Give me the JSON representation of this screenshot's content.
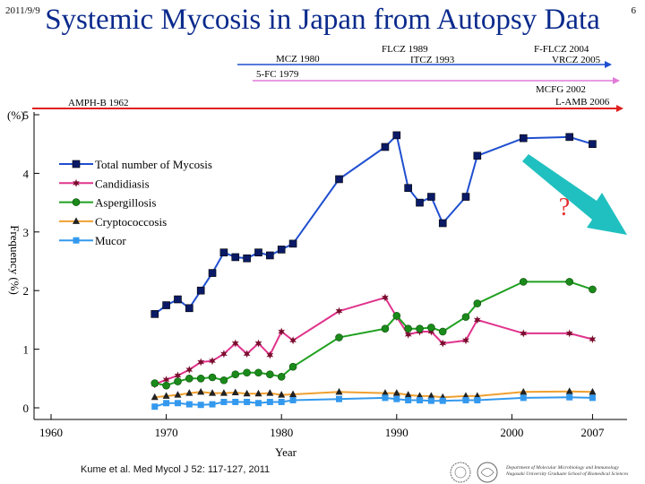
{
  "header": {
    "date": "2011/9/9",
    "title": "Systemic Mycosis in Japan from Autopsy Data",
    "page_number": "6"
  },
  "drug_timeline": {
    "mcz": "MCZ 1980",
    "flcz": "FLCZ 1989",
    "itcz": "ITCZ 1993",
    "fflcz": "F-FLCZ 2004",
    "vrcz": "VRCZ 2005",
    "fc": "5-FC 1979",
    "mcfg": "MCFG 2002",
    "amphb": "AMPH-B 1962",
    "lamb": "L-AMB 2006"
  },
  "annotation": {
    "question_mark": "?"
  },
  "footer": {
    "citation": "Kume et al. Med Mycol J 52: 117-127, 2011",
    "department_line1": "Department of Molecular Microbiology and Immunology",
    "department_line2": "Nagasaki University Graduate School of Biomedical Sciences"
  },
  "colors": {
    "title": "#0a2a8c",
    "total": "#1f4fd0",
    "candidiasis": "#e0338c",
    "aspergillosis": "#20a020",
    "cryptococcosis": "#f0a030",
    "mucor": "#3399ee",
    "arrow": "#20c0c0",
    "question": "#e53030"
  },
  "chart_data": {
    "type": "line",
    "title": "Systemic Mycosis in Japan from Autopsy Data",
    "xlabel": "Year",
    "ylabel": "Frequency (%)",
    "y_unit_label": "(%)",
    "xlim": [
      1960,
      2010
    ],
    "ylim": [
      0,
      5
    ],
    "x_ticks": [
      "1960",
      "1970",
      "1980",
      "1990",
      "2000",
      "2007"
    ],
    "y_ticks": [
      "0",
      "1",
      "2",
      "3",
      "4",
      "5"
    ],
    "grid": false,
    "legend_position": "upper-left",
    "series": [
      {
        "name": "Total number of Mycosis",
        "marker": "square",
        "color": "#1f4fd0",
        "x": [
          1969,
          1970,
          1971,
          1972,
          1973,
          1974,
          1975,
          1976,
          1977,
          1978,
          1979,
          1980,
          1981,
          1985,
          1989,
          1990,
          1991,
          1992,
          1993,
          1994,
          1996,
          1997,
          2001,
          2005,
          2007
        ],
        "y": [
          1.6,
          1.75,
          1.85,
          1.7,
          2.0,
          2.3,
          2.65,
          2.57,
          2.55,
          2.65,
          2.6,
          2.7,
          2.8,
          3.9,
          4.45,
          4.65,
          3.75,
          3.5,
          3.6,
          3.15,
          3.6,
          4.3,
          4.6,
          4.62,
          4.5
        ]
      },
      {
        "name": "Candidiasis",
        "marker": "star",
        "color": "#e0338c",
        "x": [
          1969,
          1970,
          1971,
          1972,
          1973,
          1974,
          1975,
          1976,
          1977,
          1978,
          1979,
          1980,
          1981,
          1985,
          1989,
          1990,
          1991,
          1992,
          1993,
          1994,
          1996,
          1997,
          2001,
          2005,
          2007
        ],
        "y": [
          0.4,
          0.48,
          0.55,
          0.65,
          0.78,
          0.8,
          0.92,
          1.1,
          0.92,
          1.1,
          0.9,
          1.3,
          1.15,
          1.65,
          1.88,
          1.55,
          1.25,
          1.3,
          1.3,
          1.1,
          1.15,
          1.5,
          1.27,
          1.27,
          1.17
        ]
      },
      {
        "name": "Aspergillosis",
        "marker": "circle",
        "color": "#20a020",
        "x": [
          1969,
          1970,
          1971,
          1972,
          1973,
          1974,
          1975,
          1976,
          1977,
          1978,
          1979,
          1980,
          1981,
          1985,
          1989,
          1990,
          1991,
          1992,
          1993,
          1994,
          1996,
          1997,
          2001,
          2005,
          2007
        ],
        "y": [
          0.42,
          0.38,
          0.45,
          0.5,
          0.5,
          0.52,
          0.47,
          0.57,
          0.6,
          0.6,
          0.57,
          0.53,
          0.7,
          1.2,
          1.35,
          1.57,
          1.35,
          1.35,
          1.37,
          1.3,
          1.55,
          1.78,
          2.15,
          2.15,
          2.02
        ]
      },
      {
        "name": "Cryptococcosis",
        "marker": "triangle",
        "color": "#f0a030",
        "x": [
          1969,
          1970,
          1971,
          1972,
          1973,
          1974,
          1975,
          1976,
          1977,
          1978,
          1979,
          1980,
          1981,
          1985,
          1989,
          1990,
          1991,
          1992,
          1993,
          1994,
          1996,
          1997,
          2001,
          2005,
          2007
        ],
        "y": [
          0.18,
          0.2,
          0.22,
          0.25,
          0.27,
          0.25,
          0.25,
          0.26,
          0.24,
          0.24,
          0.25,
          0.22,
          0.23,
          0.27,
          0.25,
          0.25,
          0.22,
          0.2,
          0.2,
          0.18,
          0.2,
          0.2,
          0.27,
          0.28,
          0.27
        ]
      },
      {
        "name": "Mucor",
        "marker": "square-small",
        "color": "#3399ee",
        "x": [
          1969,
          1970,
          1971,
          1972,
          1973,
          1974,
          1975,
          1976,
          1977,
          1978,
          1979,
          1980,
          1981,
          1985,
          1989,
          1990,
          1991,
          1992,
          1993,
          1994,
          1996,
          1997,
          2001,
          2005,
          2007
        ],
        "y": [
          0.02,
          0.08,
          0.08,
          0.06,
          0.05,
          0.06,
          0.1,
          0.1,
          0.1,
          0.08,
          0.1,
          0.1,
          0.13,
          0.15,
          0.17,
          0.15,
          0.13,
          0.13,
          0.12,
          0.12,
          0.13,
          0.13,
          0.17,
          0.18,
          0.17
        ]
      }
    ]
  }
}
